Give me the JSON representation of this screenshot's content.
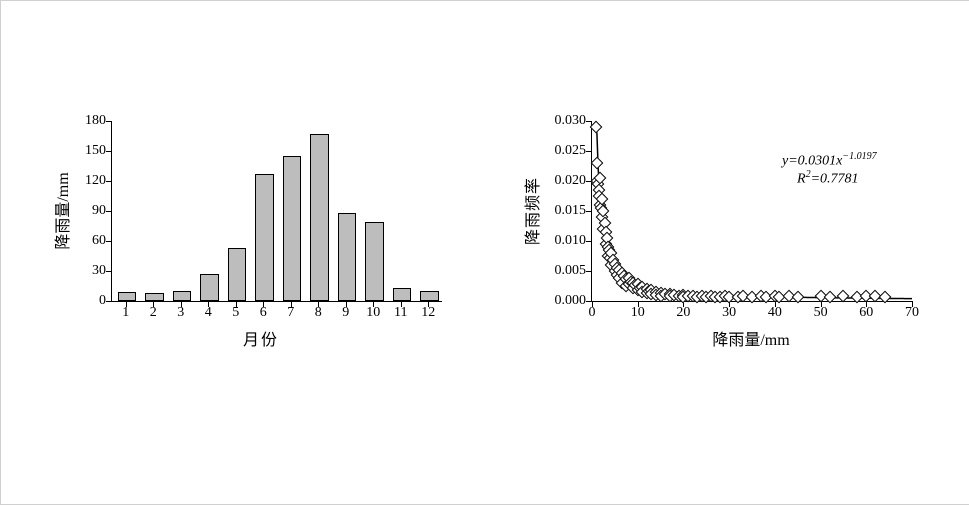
{
  "bar_chart": {
    "type": "bar",
    "ylabel": "降雨量/mm",
    "xlabel": "月份",
    "xlim": [
      0.5,
      12.5
    ],
    "ylim": [
      0,
      180
    ],
    "ytick_step": 30,
    "categories": [
      1,
      2,
      3,
      4,
      5,
      6,
      7,
      8,
      9,
      10,
      11,
      12
    ],
    "values": [
      7,
      6,
      8,
      25,
      51,
      125,
      143,
      165,
      86,
      77,
      11,
      8
    ],
    "bar_width": 0.6,
    "bar_fill": "#bdbdbd",
    "bar_border": "#000000",
    "background_color": "#ffffff",
    "axis_color": "#000000",
    "label_fontsize": 16,
    "tick_fontsize": 14
  },
  "scatter_chart": {
    "type": "scatter",
    "ylabel": "降雨频率",
    "xlabel": "降雨量/mm",
    "xlim": [
      0,
      70
    ],
    "ylim": [
      0,
      0.03
    ],
    "ytick_step": 0.005,
    "xtick_step": 10,
    "marker_shape": "diamond",
    "marker_size": 7,
    "marker_border": "#000000",
    "marker_fill": "#ffffff",
    "curve_color": "#000000",
    "curve_width": 1.5,
    "annotation_eq": "y=0.0301x−1.0197",
    "annotation_r2": "R²=0.7781",
    "background_color": "#ffffff",
    "axis_color": "#000000",
    "label_fontsize": 16,
    "tick_fontsize": 14,
    "curve_coef": 0.0301,
    "curve_exp": -1.0197,
    "points": [
      [
        0.8,
        0.029
      ],
      [
        1.0,
        0.023
      ],
      [
        1.2,
        0.02
      ],
      [
        1.4,
        0.0195
      ],
      [
        1.5,
        0.0185
      ],
      [
        1.6,
        0.0175
      ],
      [
        1.8,
        0.0205
      ],
      [
        1.8,
        0.016
      ],
      [
        2.0,
        0.0155
      ],
      [
        2.2,
        0.017
      ],
      [
        2.2,
        0.014
      ],
      [
        2.5,
        0.015
      ],
      [
        2.5,
        0.012
      ],
      [
        2.8,
        0.013
      ],
      [
        3.0,
        0.0115
      ],
      [
        3.0,
        0.0095
      ],
      [
        3.2,
        0.0105
      ],
      [
        3.5,
        0.009
      ],
      [
        3.5,
        0.0075
      ],
      [
        3.8,
        0.0085
      ],
      [
        4.0,
        0.0072
      ],
      [
        4.2,
        0.008
      ],
      [
        4.2,
        0.006
      ],
      [
        4.5,
        0.0068
      ],
      [
        5.0,
        0.0062
      ],
      [
        5.0,
        0.005
      ],
      [
        5.5,
        0.0055
      ],
      [
        5.5,
        0.0044
      ],
      [
        6.0,
        0.0052
      ],
      [
        6.0,
        0.0038
      ],
      [
        6.5,
        0.0046
      ],
      [
        6.5,
        0.003
      ],
      [
        7.0,
        0.0042
      ],
      [
        7.5,
        0.0036
      ],
      [
        7.5,
        0.0025
      ],
      [
        8.0,
        0.0038
      ],
      [
        8.0,
        0.0028
      ],
      [
        8.5,
        0.0032
      ],
      [
        9.0,
        0.003
      ],
      [
        9.0,
        0.0022
      ],
      [
        9.5,
        0.0026
      ],
      [
        10.0,
        0.0028
      ],
      [
        10.0,
        0.0018
      ],
      [
        10.5,
        0.0022
      ],
      [
        11.0,
        0.0024
      ],
      [
        11.0,
        0.0015
      ],
      [
        12.0,
        0.002
      ],
      [
        12.0,
        0.0013
      ],
      [
        12.5,
        0.0016
      ],
      [
        13.0,
        0.0018
      ],
      [
        13.0,
        0.0011
      ],
      [
        14.0,
        0.0015
      ],
      [
        14.0,
        0.001
      ],
      [
        15.0,
        0.0013
      ],
      [
        15.0,
        0.0009
      ],
      [
        16.0,
        0.0012
      ],
      [
        17.0,
        0.0011
      ],
      [
        17.0,
        0.0008
      ],
      [
        18.0,
        0.001
      ],
      [
        19.0,
        0.0009
      ],
      [
        20.0,
        0.001
      ],
      [
        20.0,
        0.0007
      ],
      [
        21.0,
        0.0008
      ],
      [
        22.0,
        0.0009
      ],
      [
        23.0,
        0.0007
      ],
      [
        24.0,
        0.0008
      ],
      [
        25.0,
        0.0007
      ],
      [
        26.0,
        0.0009
      ],
      [
        27.0,
        0.0007
      ],
      [
        28.0,
        0.0006
      ],
      [
        29.0,
        0.0008
      ],
      [
        30.0,
        0.0007
      ],
      [
        32.0,
        0.0007
      ],
      [
        33.0,
        0.0008
      ],
      [
        35.0,
        0.0007
      ],
      [
        37.0,
        0.0008
      ],
      [
        38.0,
        0.0007
      ],
      [
        40.0,
        0.0008
      ],
      [
        41.0,
        0.0007
      ],
      [
        43.0,
        0.0008
      ],
      [
        45.0,
        0.0007
      ],
      [
        50.0,
        0.0008
      ],
      [
        52.0,
        0.0007
      ],
      [
        55.0,
        0.0008
      ],
      [
        58.0,
        0.0007
      ],
      [
        60.0,
        0.0008
      ],
      [
        62.0,
        0.0008
      ],
      [
        64.0,
        0.0007
      ]
    ]
  }
}
